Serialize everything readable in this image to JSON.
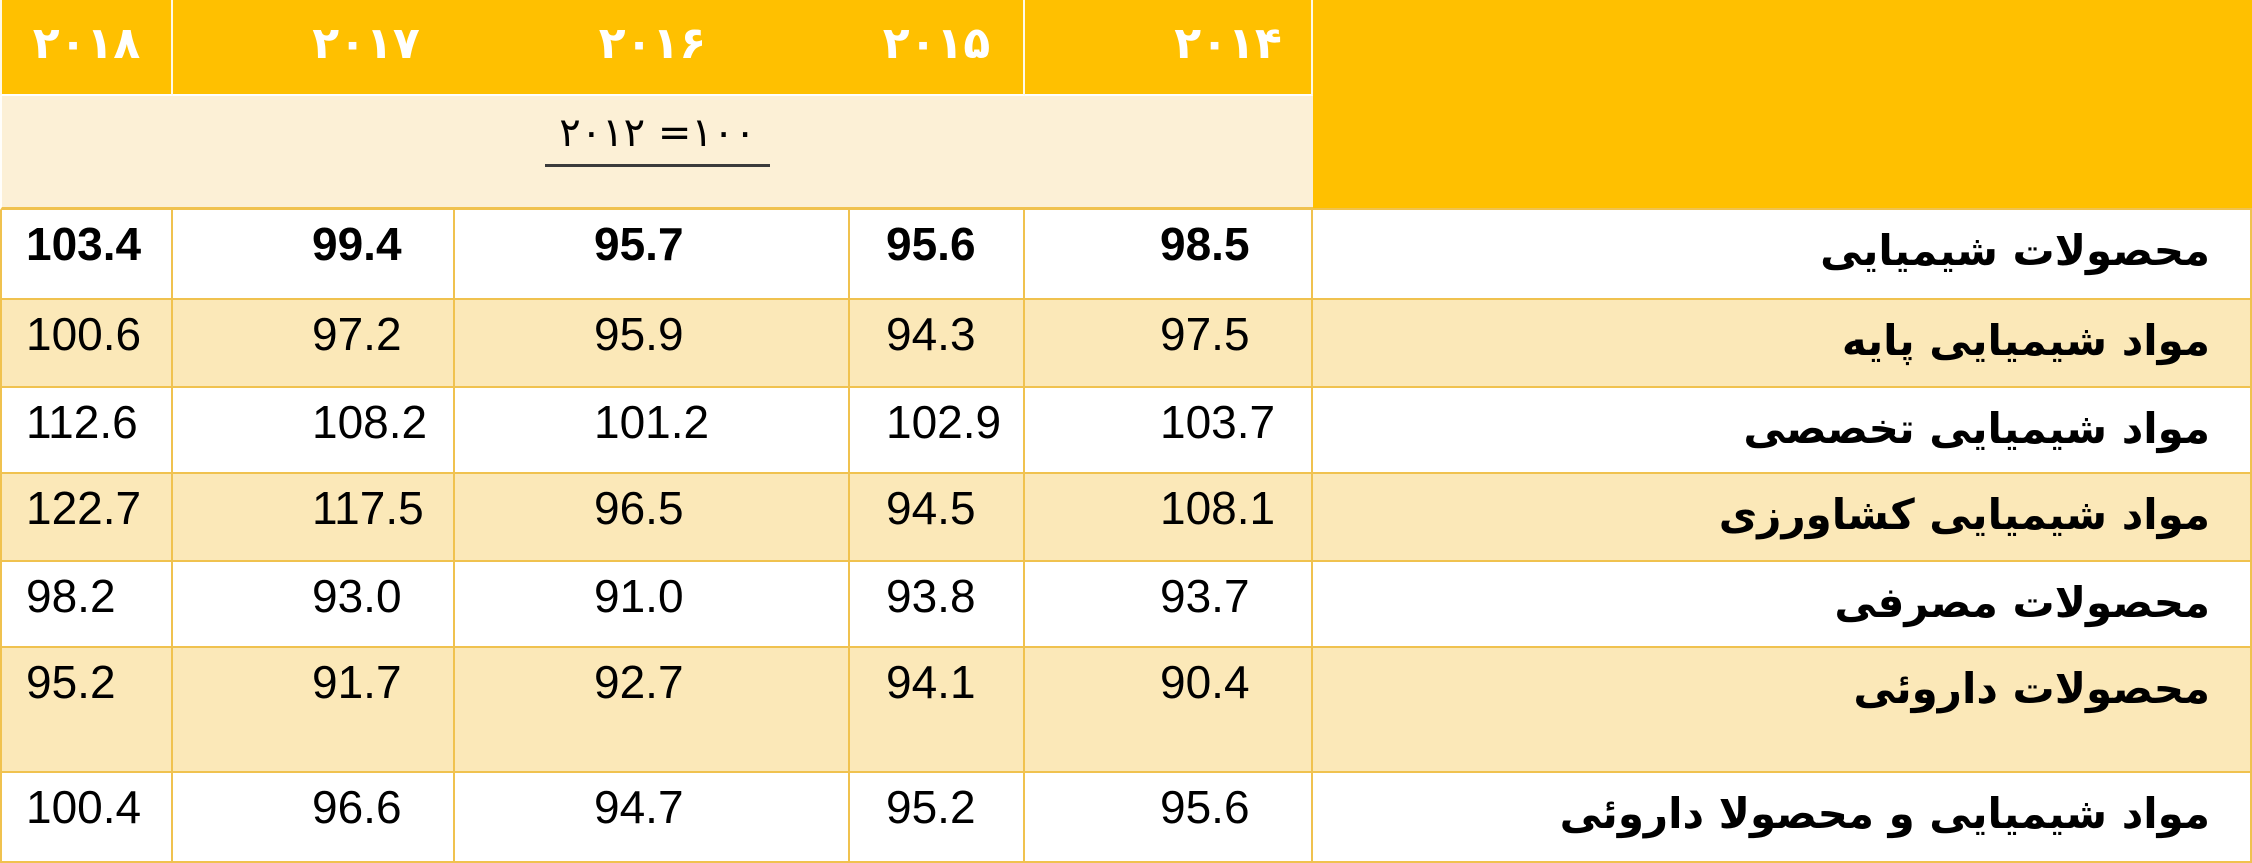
{
  "table": {
    "header": {
      "years": [
        "۲۰۱۸",
        "۲۰۱۷",
        "۲۰۱۶",
        "۲۰۱۵",
        "۲۰۱۴"
      ]
    },
    "base_note": "۲۰۱۲ =۱۰۰",
    "rows": [
      {
        "label": "محصولات شیمیایی",
        "bold": true,
        "values": [
          "103.4",
          "99.4",
          "95.7",
          "95.6",
          "98.5"
        ]
      },
      {
        "label": "مواد شیمیایی پایه",
        "bold": false,
        "values": [
          "100.6",
          "97.2",
          "95.9",
          "94.3",
          "97.5"
        ]
      },
      {
        "label": "مواد شیمیایی تخصصی",
        "bold": false,
        "values": [
          "112.6",
          "108.2",
          "101.2",
          "102.9",
          "103.7"
        ]
      },
      {
        "label": "مواد شیمیایی کشاورزی",
        "bold": false,
        "values": [
          "122.7",
          "117.5",
          "96.5",
          "94.5",
          "108.1"
        ]
      },
      {
        "label": "محصولات مصرفی",
        "bold": false,
        "values": [
          "98.2",
          "93.0",
          "91.0",
          "93.8",
          "93.7"
        ]
      },
      {
        "label": "محصولات داروئی",
        "bold": false,
        "values": [
          "95.2",
          "91.7",
          "92.7",
          "94.1",
          "90.4"
        ]
      },
      {
        "label": "مواد شیمیایی و محصولا داروئی",
        "bold": false,
        "values": [
          "100.4",
          "96.6",
          "94.7",
          "95.2",
          "95.6"
        ]
      }
    ]
  },
  "colors": {
    "header": "#FFC000",
    "header_text": "#FFFFFF",
    "cream": "#FBE8B8",
    "band": "#FCF0D6",
    "border": "#F0C24F",
    "text": "#000000"
  },
  "chart_data": {
    "type": "table",
    "title": "",
    "base_note": "۲۰۱۲ =۱۰۰",
    "base_note_meaning": "index base year 2012 = 100",
    "row_labels": [
      "محصولات شیمیایی",
      "مواد شیمیایی پایه",
      "مواد شیمیایی تخصصی",
      "مواد شیمیایی کشاورزی",
      "محصولات مصرفی",
      "محصولات داروئی",
      "مواد شیمیایی و محصولا داروئی"
    ],
    "columns": [
      "2018",
      "2017",
      "2016",
      "2015",
      "2014"
    ],
    "series": [
      {
        "name": "2018",
        "values": [
          103.4,
          100.6,
          112.6,
          122.7,
          98.2,
          95.2,
          100.4
        ]
      },
      {
        "name": "2017",
        "values": [
          99.4,
          97.2,
          108.2,
          117.5,
          93.0,
          91.7,
          96.6
        ]
      },
      {
        "name": "2016",
        "values": [
          95.7,
          95.9,
          101.2,
          96.5,
          91.0,
          92.7,
          94.7
        ]
      },
      {
        "name": "2015",
        "values": [
          95.6,
          94.3,
          102.9,
          94.5,
          93.8,
          94.1,
          95.2
        ]
      },
      {
        "name": "2014",
        "values": [
          98.5,
          97.5,
          103.7,
          108.1,
          93.7,
          90.4,
          95.6
        ]
      }
    ]
  }
}
